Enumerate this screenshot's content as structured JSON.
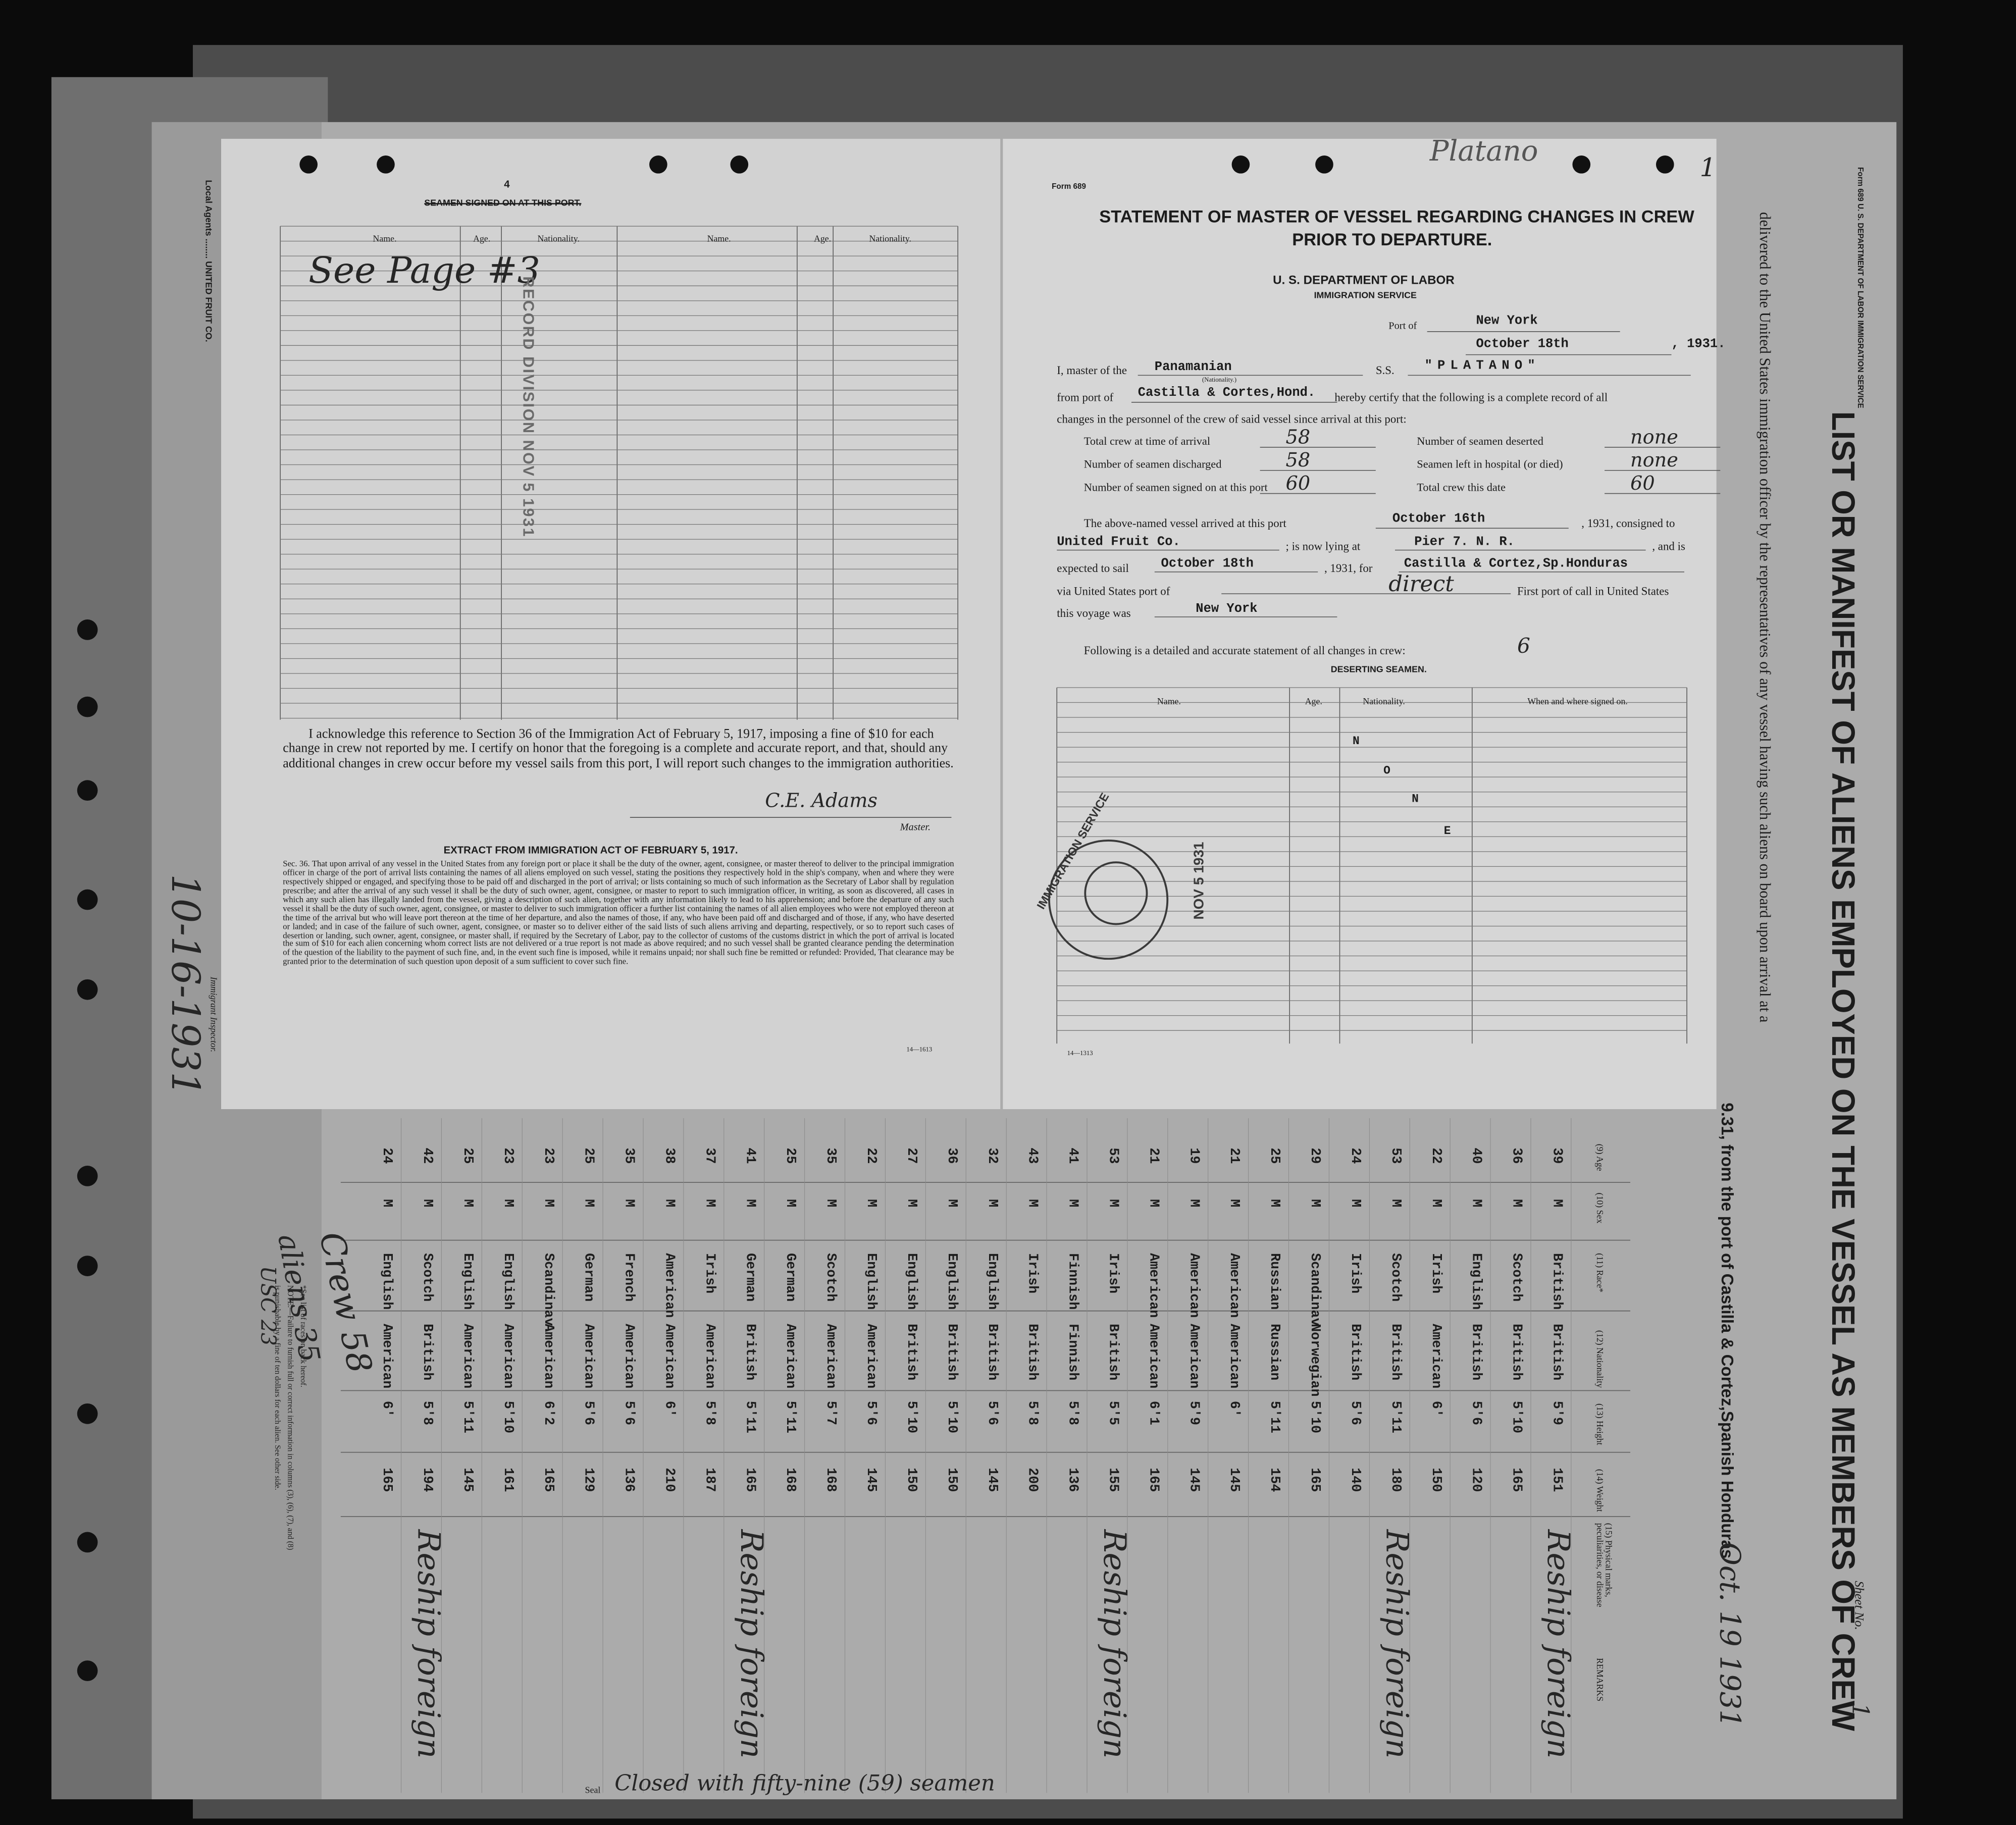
{
  "page4": {
    "page_number": "4",
    "header": "SEAMEN SIGNED ON AT THIS PORT.",
    "columns": [
      "Name.",
      "Age.",
      "Nationality.",
      "Name.",
      "Age.",
      "Nationality."
    ],
    "handwritten_note": "See Page #3",
    "stamp": "RECORD DIVISION NOV 5 1931",
    "acknowledgment": "I acknowledge this reference to Section 36 of the Immigration Act of February 5, 1917, imposing a fine of $10 for each change in crew not reported by me. I certify on honor that the foregoing is a complete and accurate report, and that, should any additional changes in crew occur before my vessel sails from this port, I will report such changes to the immigration authorities.",
    "signature": "C.E. Adams",
    "signature_label": "Master.",
    "extract_title": "EXTRACT FROM IMMIGRATION ACT OF FEBRUARY 5, 1917.",
    "section_36": "Sec. 36. That upon arrival of any vessel in the United States from any foreign port or place it shall be the duty of the owner, agent, consignee, or master thereof to deliver to the principal immigration officer in charge of the port of arrival lists containing the names of all aliens employed on such vessel, stating the positions they respectively hold in the ship's company, when and where they were respectively shipped or engaged, and specifying those to be paid off and discharged in the port of arrival; or lists containing so much of such information as the Secretary of Labor shall by regulation prescribe; and after the arrival of any such vessel it shall be the duty of such owner, agent, consignee, or master to report to such immigration officer, in writing, as soon as discovered, all cases in which any such alien has illegally landed from the vessel, giving a description of such alien, together with any information likely to lead to his apprehension; and before the departure of any such vessel it shall be the duty of such owner, agent, consignee, or master to deliver to such immigration officer a further list containing the names of all alien employees who were not employed thereon at the time of the arrival but who will leave port thereon at the time of her departure, and also the names of those, if any, who have been paid off and discharged and of those, if any, who have deserted or landed; and in case of the failure of such owner, agent, consignee, or master so to deliver either of the said lists of such aliens arriving and departing, respectively, or so to report such cases of desertion or landing, such owner, agent, consignee, or master shall, if required by the Secretary of Labor, pay to the collector of customs of the customs district in which the port of arrival is located the sum of $10 for each alien concerning whom correct lists are not delivered or a true report is not made as above required; and no such vessel shall be granted clearance pending the determination of the question of the liability to the payment of such fine, and, in the event such fine is imposed, while it remains unpaid; nor shall such fine be remitted or refunded: Provided, That clearance may be granted prior to the determination of such question upon deposit of a sum sufficient to cover such fine.",
    "form_number": "14—1613"
  },
  "form689": {
    "form_label": "Form 689",
    "title_line1": "STATEMENT OF MASTER OF VESSEL REGARDING CHANGES IN CREW",
    "title_line2": "PRIOR TO DEPARTURE.",
    "department": "U. S. DEPARTMENT OF LABOR",
    "service": "IMMIGRATION SERVICE",
    "port_label": "Port of",
    "port": "New York",
    "date": "October 18th",
    "year": ", 1931.",
    "master_label": "I, master of the",
    "nationality": "Panamanian",
    "nationality_label": "(Nationality.)",
    "ss_label": "S.S.",
    "vessel": "\"PLATANO\"",
    "from_label": "from port of",
    "from_port": "Castilla & Cortes,Hond.",
    "certify_1": "hereby certify that the following is a complete record of all",
    "certify_2": "changes in the personnel of the crew of said vessel since arrival at this port:",
    "counts": [
      {
        "label": "Total crew at time of arrival",
        "value": "58"
      },
      {
        "label": "Number of seamen deserted",
        "value": "none"
      },
      {
        "label": "Number of seamen discharged",
        "value": "58"
      },
      {
        "label": "Seamen left in hospital (or died)",
        "value": "none"
      },
      {
        "label": "Number of seamen signed on at this port",
        "value": "60"
      },
      {
        "label": "Total crew this date",
        "value": "60"
      }
    ],
    "arrived_label": "The above-named vessel arrived at this port",
    "arrived_date": "October 16th",
    "consigned_label": ", 1931, consigned to",
    "consignee": "United Fruit Co.",
    "lying_label": "; is now lying at",
    "pier": "Pier 7. N. R.",
    "and_is": ", and is",
    "expected_label": "expected to sail",
    "sail_date": "October 18th",
    "for_label": ", 1931, for",
    "destination": "Castilla & Cortez,Sp.Honduras",
    "via_label": "via United States port of",
    "via": "direct",
    "first_port_label": "First port of call in United States",
    "voyage_label": "this voyage was",
    "first_port": "New York",
    "following": "Following is a detailed and accurate statement of all changes in crew:",
    "following_mark": "6",
    "deserting_title": "DESERTING SEAMEN.",
    "columns": [
      "Name.",
      "Age.",
      "Nationality.",
      "When and where signed on."
    ],
    "none_letters": [
      "N",
      "O",
      "N",
      "E"
    ],
    "stamp_ring": "IMMIGRATION SERVICE",
    "stamp_date": "NOV 5 1931",
    "handwritten_vessel": "Platano",
    "handwritten_number": "1",
    "form_number": "14—1313"
  },
  "manifest": {
    "title": "LIST OR MANIFEST OF ALIENS EMPLOYED ON THE VESSEL AS MEMBERS OF CREW",
    "form_header": "Form 689 U. S. DEPARTMENT OF LABOR IMMIGRATION SERVICE",
    "instruction": "delivered to the United States immigration officer by the representatives of any vessel having such aliens on board upon arrival at a",
    "arrival_line": "9.31, from the port of Castilla & Cortez,Spanish Honduras",
    "arrival_date": "Oct. 19 1931",
    "sheet_label": "Sheet No.",
    "sheet_no": "1",
    "columns": [
      "(9) Age",
      "(10) Sex",
      "(11) Race*",
      "(12) Nationality",
      "(13) Height",
      "(14) Weight",
      "(15) Physical marks, peculiarities, or disease",
      "REMARKS"
    ],
    "crew": [
      {
        "age": 39,
        "sex": "M",
        "race": "British",
        "nationality": "British",
        "height": "5'9",
        "weight": 151
      },
      {
        "age": 36,
        "sex": "M",
        "race": "Scotch",
        "nationality": "British",
        "height": "5'10",
        "weight": 165
      },
      {
        "age": 40,
        "sex": "M",
        "race": "English",
        "nationality": "British",
        "height": "5'6",
        "weight": 120
      },
      {
        "age": 22,
        "sex": "M",
        "race": "Irish",
        "nationality": "American",
        "height": "6'",
        "weight": 150
      },
      {
        "age": 53,
        "sex": "M",
        "race": "Scotch",
        "nationality": "British",
        "height": "5'11",
        "weight": 180
      },
      {
        "age": 24,
        "sex": "M",
        "race": "Irish",
        "nationality": "British",
        "height": "5'6",
        "weight": 140
      },
      {
        "age": 29,
        "sex": "M",
        "race": "Scandinav.",
        "nationality": "Norwegian",
        "height": "5'10",
        "weight": 165
      },
      {
        "age": 25,
        "sex": "M",
        "race": "Russian",
        "nationality": "Russian",
        "height": "5'11",
        "weight": 154
      },
      {
        "age": 21,
        "sex": "M",
        "race": "American",
        "nationality": "American",
        "height": "6'",
        "weight": 145
      },
      {
        "age": 19,
        "sex": "M",
        "race": "American",
        "nationality": "American",
        "height": "5'9",
        "weight": 145
      },
      {
        "age": 21,
        "sex": "M",
        "race": "American",
        "nationality": "American",
        "height": "6'1",
        "weight": 165
      },
      {
        "age": 53,
        "sex": "M",
        "race": "Irish",
        "nationality": "British",
        "height": "5'5",
        "weight": 155
      },
      {
        "age": 41,
        "sex": "M",
        "race": "Finnish",
        "nationality": "Finnish",
        "height": "5'8",
        "weight": 136
      },
      {
        "age": 43,
        "sex": "M",
        "race": "Irish",
        "nationality": "British",
        "height": "5'8",
        "weight": 200
      },
      {
        "age": 32,
        "sex": "M",
        "race": "English",
        "nationality": "British",
        "height": "5'6",
        "weight": 145
      },
      {
        "age": 36,
        "sex": "M",
        "race": "English",
        "nationality": "British",
        "height": "5'10",
        "weight": 150
      },
      {
        "age": 27,
        "sex": "M",
        "race": "English",
        "nationality": "British",
        "height": "5'10",
        "weight": 150
      },
      {
        "age": 22,
        "sex": "M",
        "race": "English",
        "nationality": "American",
        "height": "5'6",
        "weight": 145
      },
      {
        "age": 35,
        "sex": "M",
        "race": "Scotch",
        "nationality": "American",
        "height": "5'7",
        "weight": 168
      },
      {
        "age": 25,
        "sex": "M",
        "race": "German",
        "nationality": "American",
        "height": "5'11",
        "weight": 168
      },
      {
        "age": 41,
        "sex": "M",
        "race": "German",
        "nationality": "British",
        "height": "5'11",
        "weight": 165
      },
      {
        "age": 37,
        "sex": "M",
        "race": "Irish",
        "nationality": "American",
        "height": "5'8",
        "weight": 187
      },
      {
        "age": 38,
        "sex": "M",
        "race": "American",
        "nationality": "American",
        "height": "6'",
        "weight": 210
      },
      {
        "age": 35,
        "sex": "M",
        "race": "French",
        "nationality": "American",
        "height": "5'6",
        "weight": 136
      },
      {
        "age": 25,
        "sex": "M",
        "race": "German",
        "nationality": "American",
        "height": "5'6",
        "weight": 129
      },
      {
        "age": 23,
        "sex": "M",
        "race": "Scandinav.",
        "nationality": "American",
        "height": "6'2",
        "weight": 165
      },
      {
        "age": 23,
        "sex": "M",
        "race": "English",
        "nationality": "American",
        "height": "5'10",
        "weight": 161
      },
      {
        "age": 25,
        "sex": "M",
        "race": "English",
        "nationality": "American",
        "height": "5'11",
        "weight": 145
      },
      {
        "age": 42,
        "sex": "M",
        "race": "Scotch",
        "nationality": "British",
        "height": "5'8",
        "weight": 194
      },
      {
        "age": 24,
        "sex": "M",
        "race": "English",
        "nationality": "American",
        "height": "6'",
        "weight": 165
      }
    ],
    "remarks": [
      "Reship foreign",
      "Reship foreign",
      "Reship foreign",
      "Reship foreign",
      "Reship foreign"
    ],
    "footnote_1": "*See list of races on back hereof.",
    "footnote_2": "NOTE.—Failure to furnish full or correct information in columns (3), (6), (7), and (8)",
    "footnote_3": "is punishable by a fine of ten dollars for each alien. See other side.",
    "local_agents": "Local Agents ........ UNITED FRUIT CO.",
    "inspector": "Immigrant Inspector.",
    "date_note": "10-16-1931",
    "crew_note": "Crew 58",
    "aliens_note": "aliens 35",
    "usc_note": "USC 23",
    "seal_label": "Seal",
    "closing": "Closed with fifty-nine (59) seamen"
  }
}
